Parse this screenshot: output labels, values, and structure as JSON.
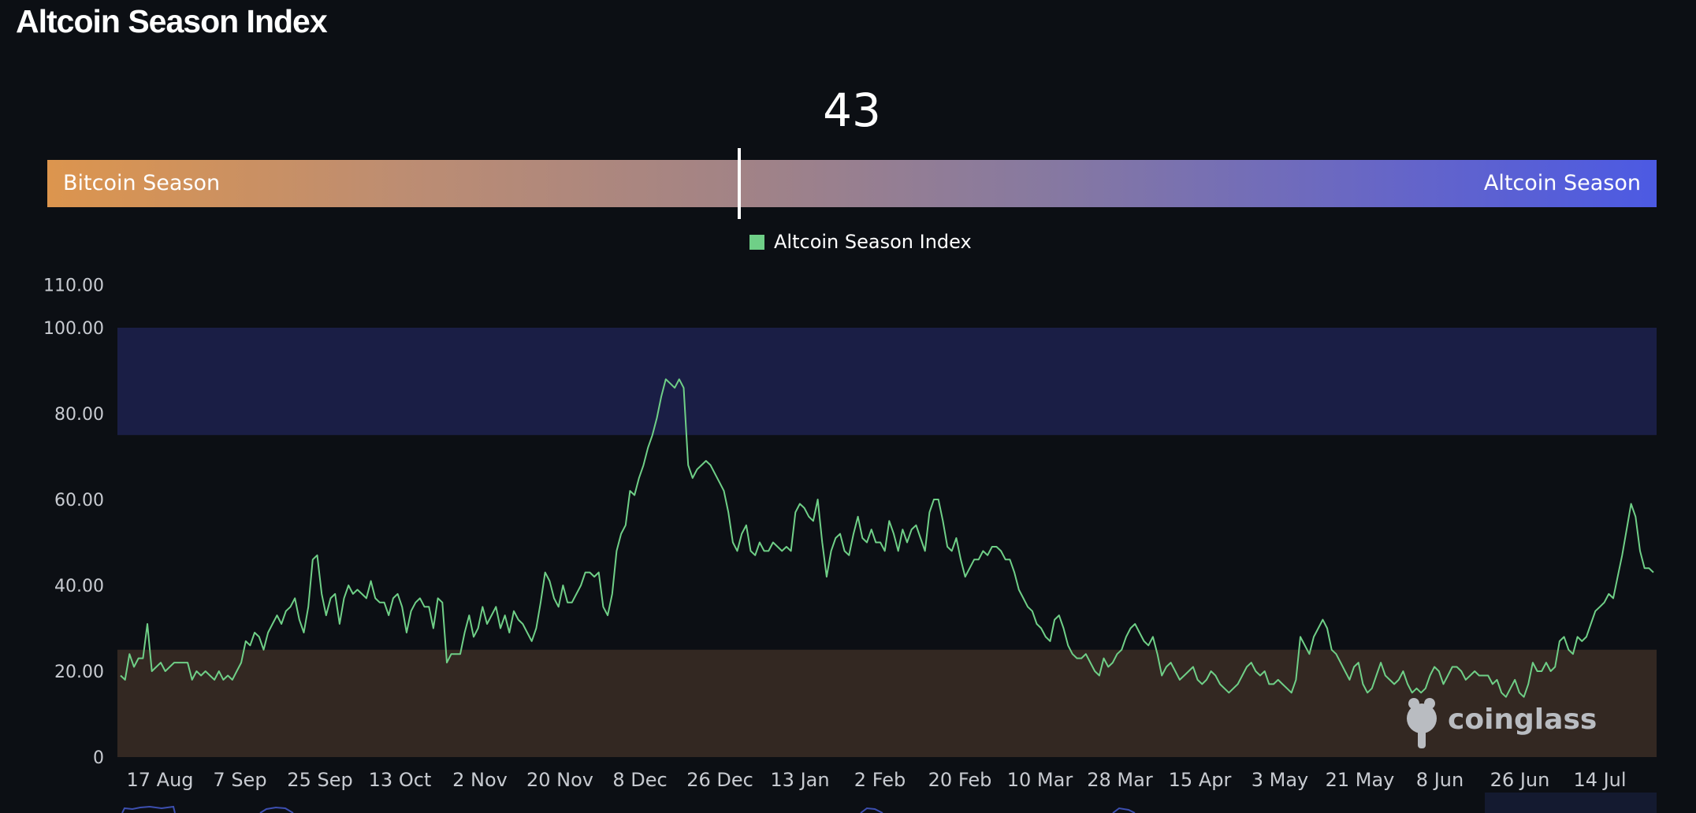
{
  "title": "Altcoin Season Index",
  "current_index": "43",
  "current_index_value": 43,
  "gauge": {
    "left_label": "Bitcoin Season",
    "right_label": "Altcoin Season",
    "range": [
      0,
      100
    ]
  },
  "legend": {
    "label": "Altcoin Season Index",
    "color": "#6fcf87"
  },
  "watermark": "coinglass",
  "colors": {
    "background": "#0c0f14",
    "line": "#6fcf87",
    "altcoin_zone": "#1a1e45",
    "bitcoin_zone": "#332822",
    "gradient_left": "#dc954e",
    "gradient_right": "#4c5ae3"
  },
  "chart_data": {
    "type": "line",
    "title": "Altcoin Season Index",
    "ylim": [
      0,
      110
    ],
    "y_ticks": [
      "0",
      "20.00",
      "40.00",
      "60.00",
      "80.00",
      "100.00",
      "110.00"
    ],
    "y_tick_values": [
      0,
      20,
      40,
      60,
      80,
      100,
      110
    ],
    "x_ticks": [
      "17 Aug",
      "7 Sep",
      "25 Sep",
      "13 Oct",
      "2 Nov",
      "20 Nov",
      "8 Dec",
      "26 Dec",
      "13 Jan",
      "2 Feb",
      "20 Feb",
      "10 Mar",
      "28 Mar",
      "15 Apr",
      "3 May",
      "21 May",
      "8 Jun",
      "26 Jun",
      "14 Jul"
    ],
    "bands": [
      {
        "name": "altcoin_season_zone",
        "from": 75,
        "to": 100
      },
      {
        "name": "bitcoin_season_zone",
        "from": 0,
        "to": 25
      }
    ],
    "series": [
      {
        "name": "Altcoin Season Index",
        "values": [
          19,
          18,
          24,
          21,
          23,
          23,
          31,
          20,
          21,
          22,
          20,
          21,
          22,
          22,
          22,
          22,
          18,
          20,
          19,
          20,
          19,
          18,
          20,
          18,
          19,
          18,
          20,
          22,
          27,
          26,
          29,
          28,
          25,
          29,
          31,
          33,
          31,
          34,
          35,
          37,
          32,
          29,
          35,
          46,
          47,
          38,
          33,
          37,
          38,
          31,
          37,
          40,
          38,
          39,
          38,
          37,
          41,
          37,
          36,
          36,
          33,
          37,
          38,
          35,
          29,
          34,
          36,
          37,
          35,
          35,
          30,
          37,
          36,
          22,
          24,
          24,
          24,
          29,
          33,
          28,
          30,
          35,
          31,
          33,
          35,
          30,
          33,
          29,
          34,
          32,
          31,
          29,
          27,
          30,
          36,
          43,
          41,
          37,
          35,
          40,
          36,
          36,
          38,
          40,
          43,
          43,
          42,
          43,
          35,
          33,
          38,
          48,
          52,
          54,
          62,
          61,
          65,
          68,
          72,
          75,
          79,
          84,
          88,
          87,
          86,
          88,
          86,
          68,
          65,
          67,
          68,
          69,
          68,
          66,
          64,
          62,
          57,
          50,
          48,
          52,
          54,
          48,
          47,
          50,
          48,
          48,
          50,
          49,
          48,
          49,
          48,
          57,
          59,
          58,
          56,
          55,
          60,
          50,
          42,
          48,
          51,
          52,
          48,
          47,
          52,
          56,
          51,
          50,
          53,
          50,
          50,
          48,
          55,
          52,
          48,
          53,
          50,
          53,
          54,
          51,
          48,
          57,
          60,
          60,
          55,
          49,
          48,
          51,
          46,
          42,
          44,
          46,
          46,
          48,
          47,
          49,
          49,
          48,
          46,
          46,
          43,
          39,
          37,
          35,
          34,
          31,
          30,
          28,
          27,
          32,
          33,
          30,
          26,
          24,
          23,
          23,
          24,
          22,
          20,
          19,
          23,
          21,
          22,
          24,
          25,
          28,
          30,
          31,
          29,
          27,
          26,
          28,
          24,
          19,
          21,
          22,
          20,
          18,
          19,
          20,
          21,
          18,
          17,
          18,
          20,
          19,
          17,
          16,
          15,
          16,
          17,
          19,
          21,
          22,
          20,
          19,
          20,
          17,
          17,
          18,
          17,
          16,
          15,
          18,
          28,
          26,
          24,
          28,
          30,
          32,
          30,
          25,
          24,
          22,
          20,
          18,
          21,
          22,
          17,
          15,
          16,
          19,
          22,
          19,
          18,
          17,
          18,
          20,
          17,
          15,
          16,
          15,
          16,
          19,
          21,
          20,
          17,
          19,
          21,
          21,
          20,
          18,
          19,
          20,
          19,
          19,
          19,
          17,
          18,
          15,
          14,
          16,
          18,
          15,
          14,
          17,
          22,
          20,
          20,
          22,
          20,
          21,
          27,
          28,
          25,
          24,
          28,
          27,
          28,
          31,
          34,
          35,
          36,
          38,
          37,
          42,
          47,
          53,
          59,
          56,
          48,
          44,
          44,
          43
        ]
      }
    ]
  }
}
